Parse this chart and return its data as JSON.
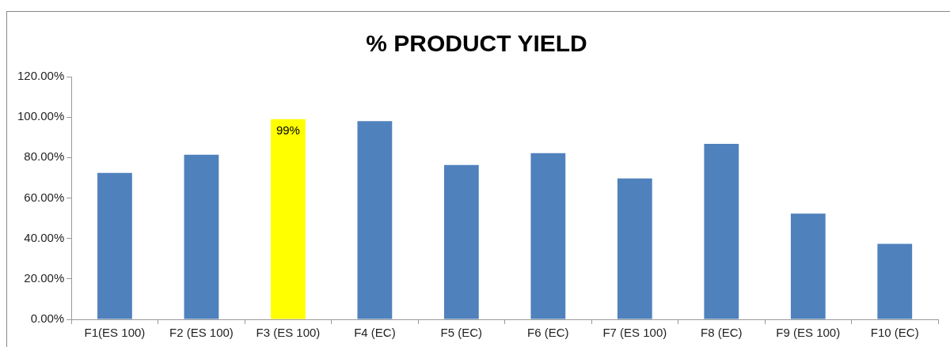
{
  "chart_data": {
    "type": "bar",
    "title": "% PRODUCT YIELD",
    "categories": [
      "F1(ES 100)",
      "F2 (ES 100)",
      "F3 (ES 100)",
      "F4 (EC)",
      "F5 (EC)",
      "F6 (EC)",
      "F7 (ES 100)",
      "F8 (EC)",
      "F9 (ES 100)",
      "F10 (EC)"
    ],
    "values": [
      72.4,
      81.4,
      99,
      98,
      76.3,
      82.2,
      69.7,
      86.8,
      52.3,
      37.3
    ],
    "colors": [
      "#4f81bd",
      "#4f81bd",
      "#ffff00",
      "#4f81bd",
      "#4f81bd",
      "#4f81bd",
      "#4f81bd",
      "#4f81bd",
      "#4f81bd",
      "#4f81bd"
    ],
    "value_labels": [
      null,
      null,
      "99%",
      null,
      null,
      null,
      null,
      null,
      null,
      null
    ],
    "ylim": [
      0,
      120
    ],
    "yticks": [
      {
        "value": 0,
        "label": "0.00%"
      },
      {
        "value": 20,
        "label": "20.00%"
      },
      {
        "value": 40,
        "label": "40.00%"
      },
      {
        "value": 60,
        "label": "60.00%"
      },
      {
        "value": 80,
        "label": "80.00%"
      },
      {
        "value": 100,
        "label": "100.00%"
      },
      {
        "value": 120,
        "label": "120.00%"
      }
    ],
    "grid": false,
    "legend": false
  }
}
